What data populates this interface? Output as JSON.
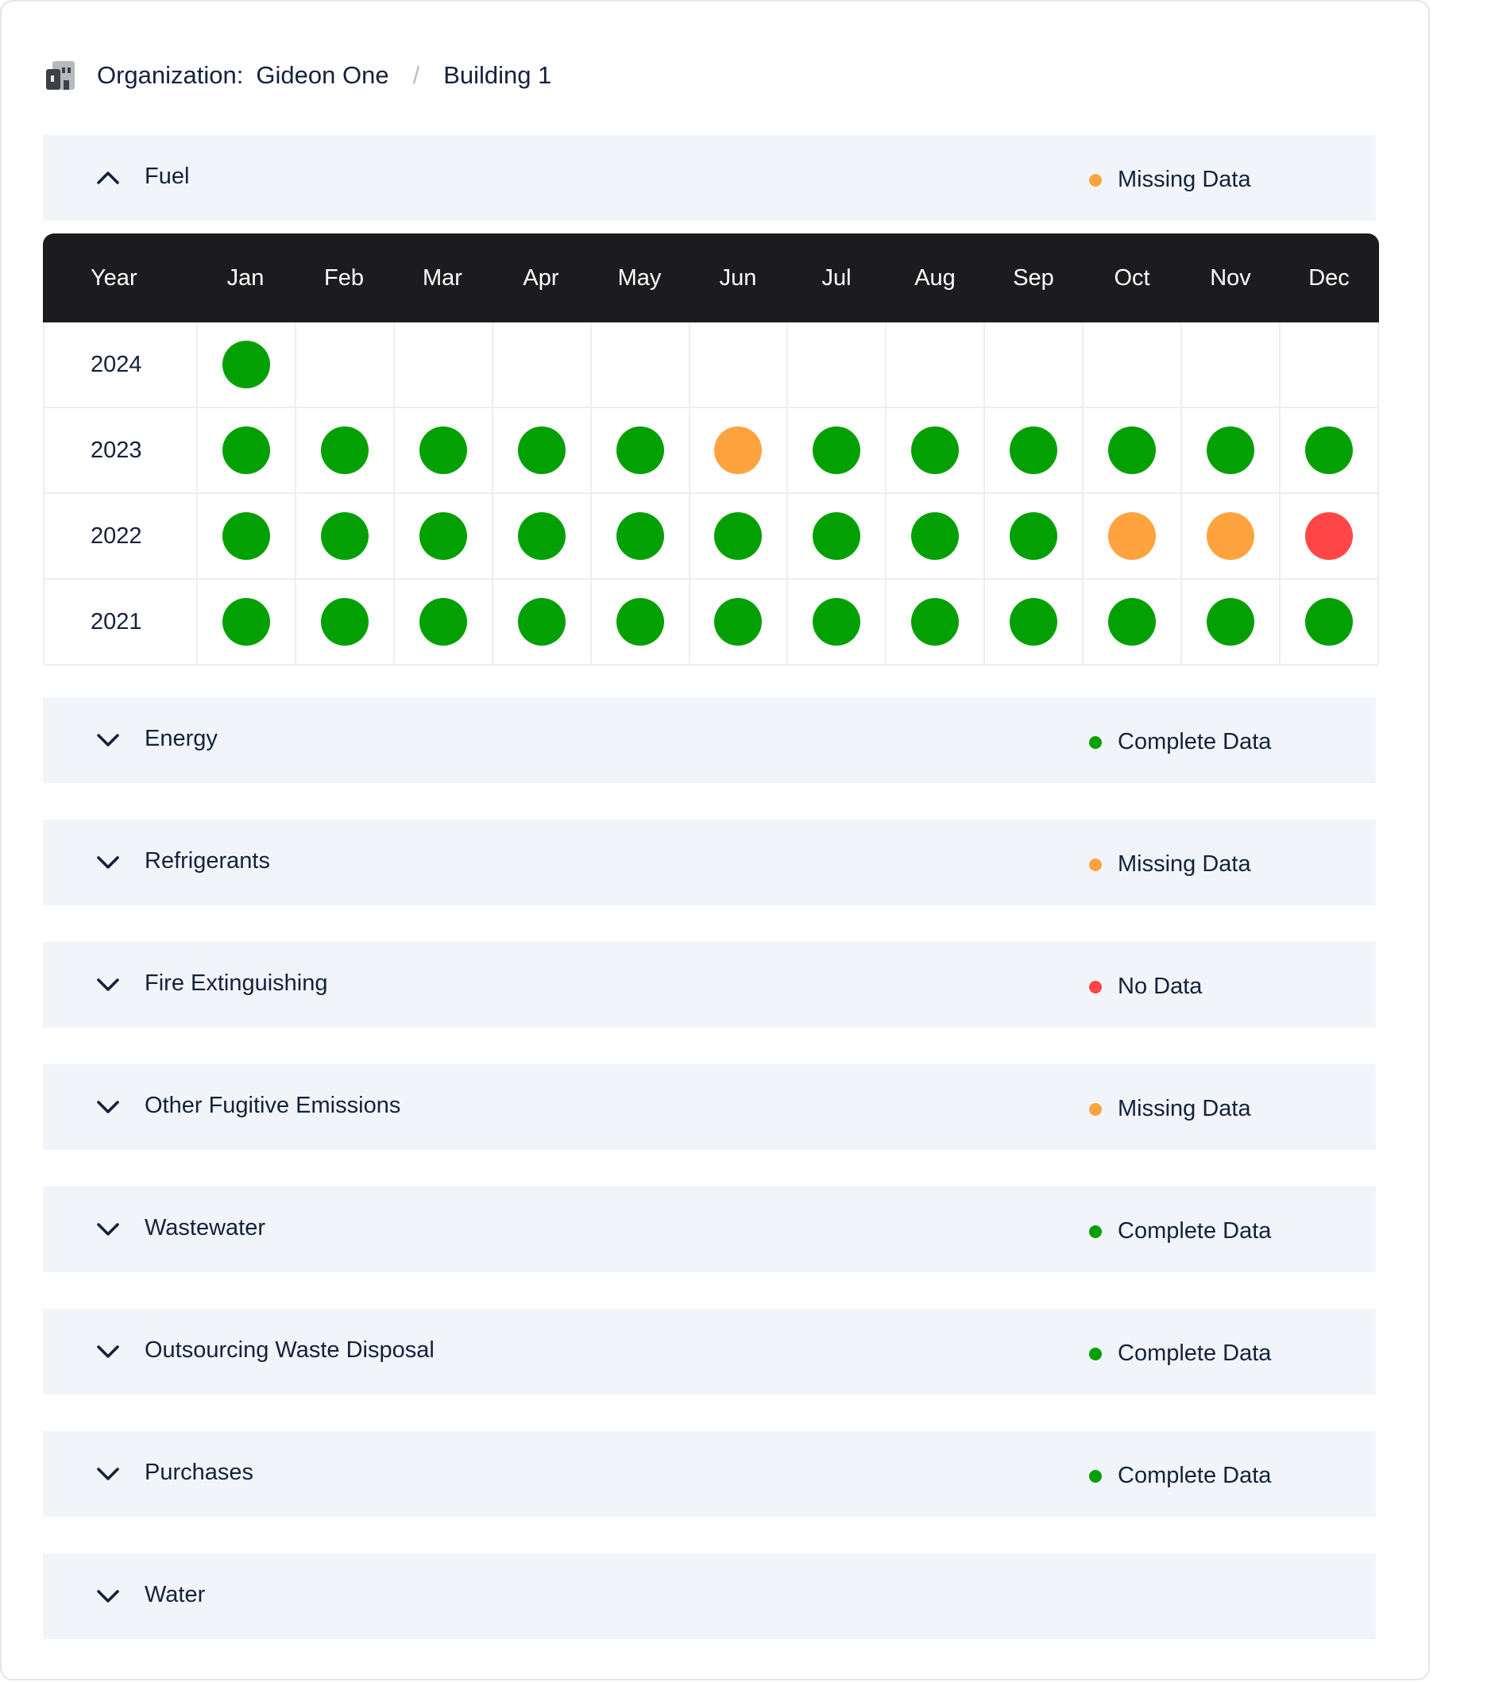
{
  "breadcrumb": {
    "org_label": "Organization:",
    "org_name": "Gideon One",
    "separator": "/",
    "building": "Building 1"
  },
  "status_colors": {
    "complete": "#03a003",
    "missing": "#fea33e",
    "none": "#ff4646"
  },
  "fuel": {
    "title": "Fuel",
    "status": "Missing Data",
    "status_key": "missing",
    "expanded": true,
    "table": {
      "year_header": "Year",
      "months": [
        "Jan",
        "Feb",
        "Mar",
        "Apr",
        "May",
        "Jun",
        "Jul",
        "Aug",
        "Sep",
        "Oct",
        "Nov",
        "Dec"
      ],
      "rows": [
        {
          "year": "2024",
          "cells": [
            "complete",
            "",
            "",
            "",
            "",
            "",
            "",
            "",
            "",
            "",
            "",
            ""
          ]
        },
        {
          "year": "2023",
          "cells": [
            "complete",
            "complete",
            "complete",
            "complete",
            "complete",
            "missing",
            "complete",
            "complete",
            "complete",
            "complete",
            "complete",
            "complete"
          ]
        },
        {
          "year": "2022",
          "cells": [
            "complete",
            "complete",
            "complete",
            "complete",
            "complete",
            "complete",
            "complete",
            "complete",
            "complete",
            "missing",
            "missing",
            "none"
          ]
        },
        {
          "year": "2021",
          "cells": [
            "complete",
            "complete",
            "complete",
            "complete",
            "complete",
            "complete",
            "complete",
            "complete",
            "complete",
            "complete",
            "complete",
            "complete"
          ]
        }
      ]
    }
  },
  "sections": [
    {
      "title": "Energy",
      "status": "Complete Data",
      "status_key": "complete"
    },
    {
      "title": "Refrigerants",
      "status": "Missing Data",
      "status_key": "missing"
    },
    {
      "title": "Fire Extinguishing",
      "status": "No Data",
      "status_key": "none"
    },
    {
      "title": "Other Fugitive Emissions",
      "status": "Missing Data",
      "status_key": "missing"
    },
    {
      "title": "Wastewater",
      "status": "Complete Data",
      "status_key": "complete"
    },
    {
      "title": "Outsourcing Waste Disposal",
      "status": "Complete Data",
      "status_key": "complete"
    },
    {
      "title": "Purchases",
      "status": "Complete Data",
      "status_key": "complete"
    },
    {
      "title": "Water",
      "status": "",
      "status_key": ""
    }
  ]
}
